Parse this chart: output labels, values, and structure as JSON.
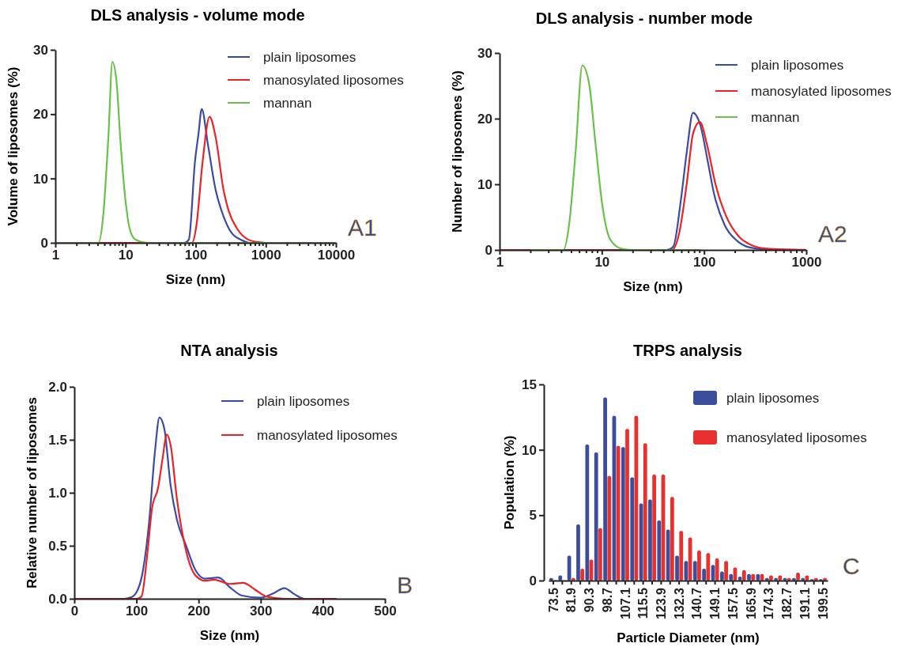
{
  "chart_data": [
    {
      "type": "line",
      "title": "DLS analysis - volume mode",
      "xlabel": "Size (nm)",
      "ylabel": "Volume of liposomes (%)",
      "log": "x",
      "xlim": [
        1,
        10000
      ],
      "ylim": [
        0,
        30
      ],
      "yticks": [
        0,
        10,
        20,
        30
      ],
      "xticks": [
        1,
        {
          "value": 2,
          "label": null
        },
        {
          "value": 3,
          "label": null
        },
        {
          "value": 4,
          "label": null
        },
        {
          "value": 5,
          "label": null
        },
        {
          "value": 6,
          "label": null
        },
        {
          "value": 7,
          "label": null
        },
        {
          "value": 8,
          "label": null
        },
        {
          "value": 9,
          "label": null
        },
        10,
        {
          "value": 20,
          "label": null
        },
        {
          "value": 30,
          "label": null
        },
        {
          "value": 40,
          "label": null
        },
        {
          "value": 50,
          "label": null
        },
        {
          "value": 60,
          "label": null
        },
        {
          "value": 70,
          "label": null
        },
        {
          "value": 80,
          "label": null
        },
        {
          "value": 90,
          "label": null
        },
        100,
        {
          "value": 200,
          "label": null
        },
        {
          "value": 300,
          "label": null
        },
        {
          "value": 400,
          "label": null
        },
        {
          "value": 500,
          "label": null
        },
        {
          "value": 600,
          "label": null
        },
        {
          "value": 700,
          "label": null
        },
        {
          "value": 800,
          "label": null
        },
        {
          "value": 900,
          "label": null
        },
        1000,
        {
          "value": 2000,
          "label": null
        },
        {
          "value": 3000,
          "label": null
        },
        {
          "value": 4000,
          "label": null
        },
        {
          "value": 5000,
          "label": null
        },
        {
          "value": 6000,
          "label": null
        },
        {
          "value": 7000,
          "label": null
        },
        {
          "value": 8000,
          "label": null
        },
        {
          "value": 9000,
          "label": null
        },
        10000
      ],
      "legend": "top right",
      "annotations": [
        "A1"
      ],
      "series": [
        {
          "name": "plain liposomes",
          "color": "#3b4ba3",
          "x": [
            1,
            69,
            80,
            98,
            110,
            122,
            150,
            193,
            250,
            322,
            457,
            590,
            1000,
            10000
          ],
          "values": [
            0,
            0,
            0.5,
            12.7,
            17,
            20.8,
            15.2,
            8.2,
            4.1,
            1.6,
            0.4,
            0,
            0,
            0
          ]
        },
        {
          "name": "manosylated liposomes",
          "color": "#ec2227",
          "x": [
            1,
            89,
            102,
            126,
            158,
            193,
            250,
            297,
            385,
            540,
            770,
            1000,
            10000
          ],
          "values": [
            0,
            0,
            2.5,
            12.7,
            19.6,
            16.4,
            8.2,
            4.9,
            2.3,
            0.6,
            0.1,
            0,
            0
          ]
        },
        {
          "name": "mannan",
          "color": "#6cc04a",
          "x": [
            1,
            4.1,
            4.8,
            5.7,
            6.5,
            7.4,
            8.5,
            10,
            11.3,
            13.5,
            17.5,
            20.8,
            10000
          ],
          "values": [
            0,
            0,
            4.1,
            16.4,
            28.1,
            25.4,
            15.6,
            6.6,
            2.5,
            0.6,
            0.1,
            0,
            0
          ]
        }
      ]
    },
    {
      "type": "line",
      "title": "DLS analysis - number mode",
      "xlabel": "Size (nm)",
      "ylabel": "Number of liposomes (%)",
      "log": "x",
      "xlim": [
        1,
        1000
      ],
      "ylim": [
        0,
        30
      ],
      "yticks": [
        0,
        10,
        20,
        30
      ],
      "xticks": [
        1,
        {
          "value": 2,
          "label": null
        },
        {
          "value": 3,
          "label": null
        },
        {
          "value": 4,
          "label": null
        },
        {
          "value": 5,
          "label": null
        },
        {
          "value": 6,
          "label": null
        },
        {
          "value": 7,
          "label": null
        },
        {
          "value": 8,
          "label": null
        },
        {
          "value": 9,
          "label": null
        },
        10,
        {
          "value": 20,
          "label": null
        },
        {
          "value": 30,
          "label": null
        },
        {
          "value": 40,
          "label": null
        },
        {
          "value": 50,
          "label": null
        },
        {
          "value": 60,
          "label": null
        },
        {
          "value": 70,
          "label": null
        },
        {
          "value": 80,
          "label": null
        },
        {
          "value": 90,
          "label": null
        },
        100,
        {
          "value": 200,
          "label": null
        },
        {
          "value": 300,
          "label": null
        },
        {
          "value": 400,
          "label": null
        },
        {
          "value": 500,
          "label": null
        },
        {
          "value": 600,
          "label": null
        },
        {
          "value": 700,
          "label": null
        },
        {
          "value": 800,
          "label": null
        },
        {
          "value": 900,
          "label": null
        },
        1000
      ],
      "legend": "top right",
      "annotations": [
        "A2"
      ],
      "series": [
        {
          "name": "plain liposomes",
          "color": "#3b4ba3",
          "x": [
            1,
            43,
            50,
            59,
            68,
            78,
            92,
            109,
            125,
            159,
            210,
            276,
            388,
            1000
          ],
          "values": [
            0,
            0,
            0.5,
            7.3,
            15.1,
            20.9,
            19,
            13.4,
            8.6,
            3.8,
            1.4,
            0.4,
            0.1,
            0
          ]
        },
        {
          "name": "manosylated liposomes",
          "color": "#ec2227",
          "x": [
            1,
            48.6,
            57,
            68,
            78,
            91,
            107,
            130,
            165,
            217,
            295,
            413,
            1000
          ],
          "values": [
            0,
            0,
            2.5,
            10.3,
            17.7,
            19.5,
            16,
            9.9,
            5.1,
            2.1,
            0.7,
            0.2,
            0
          ]
        },
        {
          "name": "mannan",
          "color": "#6cc04a",
          "x": [
            2,
            4.2,
            4.8,
            5.55,
            6.45,
            7.5,
            8.7,
            10.1,
            11.5,
            13.5,
            16,
            20.4,
            92
          ],
          "values": [
            0,
            0,
            4,
            15.1,
            28.1,
            25.4,
            16,
            6.9,
            2.4,
            0.7,
            0.15,
            0,
            0
          ]
        }
      ]
    },
    {
      "type": "line",
      "title": "NTA analysis",
      "xlabel": "Size (nm)",
      "ylabel": "Relative number of liposomes",
      "xlim": [
        0,
        500
      ],
      "xticks": [
        0,
        100,
        200,
        300,
        400,
        500
      ],
      "ylim": [
        0,
        2
      ],
      "yticks": [
        {
          "value": 0,
          "label": "0.0"
        },
        {
          "value": 0.5,
          "label": "0.5"
        },
        {
          "value": 1,
          "label": "1.0"
        },
        {
          "value": 1.5,
          "label": "1.5"
        },
        {
          "value": 2,
          "label": "2.0"
        }
      ],
      "legend": "top right",
      "annotations": [
        "B"
      ],
      "series": [
        {
          "name": "plain liposomes",
          "color": "#3b4ba3",
          "x": [
            0,
            80,
            90,
            100,
            110,
            120,
            130,
            137,
            145,
            155,
            165,
            180,
            195,
            210,
            232,
            250,
            270,
            300,
            320,
            338,
            355,
            370,
            420
          ],
          "values": [
            0,
            0,
            0.01,
            0.06,
            0.25,
            0.7,
            1.4,
            1.71,
            1.6,
            1.07,
            0.75,
            0.5,
            0.27,
            0.19,
            0.2,
            0.11,
            0.03,
            0.01,
            0.05,
            0.1,
            0.04,
            0,
            0
          ]
        },
        {
          "name": "manosylated liposomes",
          "color": "#ec2227",
          "x": [
            0,
            100,
            108,
            118,
            125,
            135,
            142,
            149,
            155,
            165,
            180,
            195,
            210,
            225,
            250,
            272,
            290,
            310,
            340,
            422
          ],
          "values": [
            0,
            0,
            0.02,
            0.45,
            0.85,
            1.05,
            1.32,
            1.55,
            1.45,
            0.95,
            0.45,
            0.22,
            0.17,
            0.18,
            0.14,
            0.15,
            0.09,
            0.02,
            0,
            0
          ]
        }
      ]
    },
    {
      "type": "bar",
      "title": "TRPS analysis",
      "xlabel": "Particle Diameter (nm)",
      "ylabel": "Population (%)",
      "ylim": [
        0,
        15
      ],
      "yticks": [
        0,
        5,
        10,
        15
      ],
      "legend": "top right",
      "annotations": [
        "C"
      ],
      "categories": [
        "73.5",
        null,
        "81.9",
        null,
        "90.3",
        null,
        "98.7",
        null,
        "107.1",
        null,
        "115.5",
        null,
        "123.9",
        null,
        "132.3",
        null,
        "140.7",
        null,
        "149.1",
        null,
        "157.5",
        null,
        "165.9",
        null,
        "174.3",
        null,
        "182.7",
        null,
        "191.1",
        null,
        "199.5"
      ],
      "series": [
        {
          "name": "plain liposomes",
          "color": "#3c4d9c",
          "values": [
            0.2,
            0.4,
            1.9,
            4.3,
            10.4,
            9.8,
            14,
            12.6,
            10.2,
            7.9,
            5.9,
            6.2,
            4.6,
            3.9,
            1.9,
            1.5,
            1.5,
            0.9,
            1.2,
            0.7,
            0.5,
            0.3,
            0.5,
            0.5,
            0.2,
            0.2,
            0.2,
            0.2,
            0.2,
            0.1,
            0.1
          ]
        },
        {
          "name": "manosylated liposomes",
          "color": "#e8302e",
          "values": [
            0,
            0,
            0.2,
            0.9,
            1.6,
            4,
            8,
            10.3,
            11.6,
            12.6,
            10.5,
            8.1,
            8.1,
            6.4,
            3.8,
            3.3,
            2.3,
            2.1,
            1.7,
            1.5,
            1,
            0.8,
            0.5,
            0.5,
            0.4,
            0.4,
            0.2,
            0.6,
            0.4,
            0.2,
            0.2
          ]
        }
      ]
    }
  ]
}
